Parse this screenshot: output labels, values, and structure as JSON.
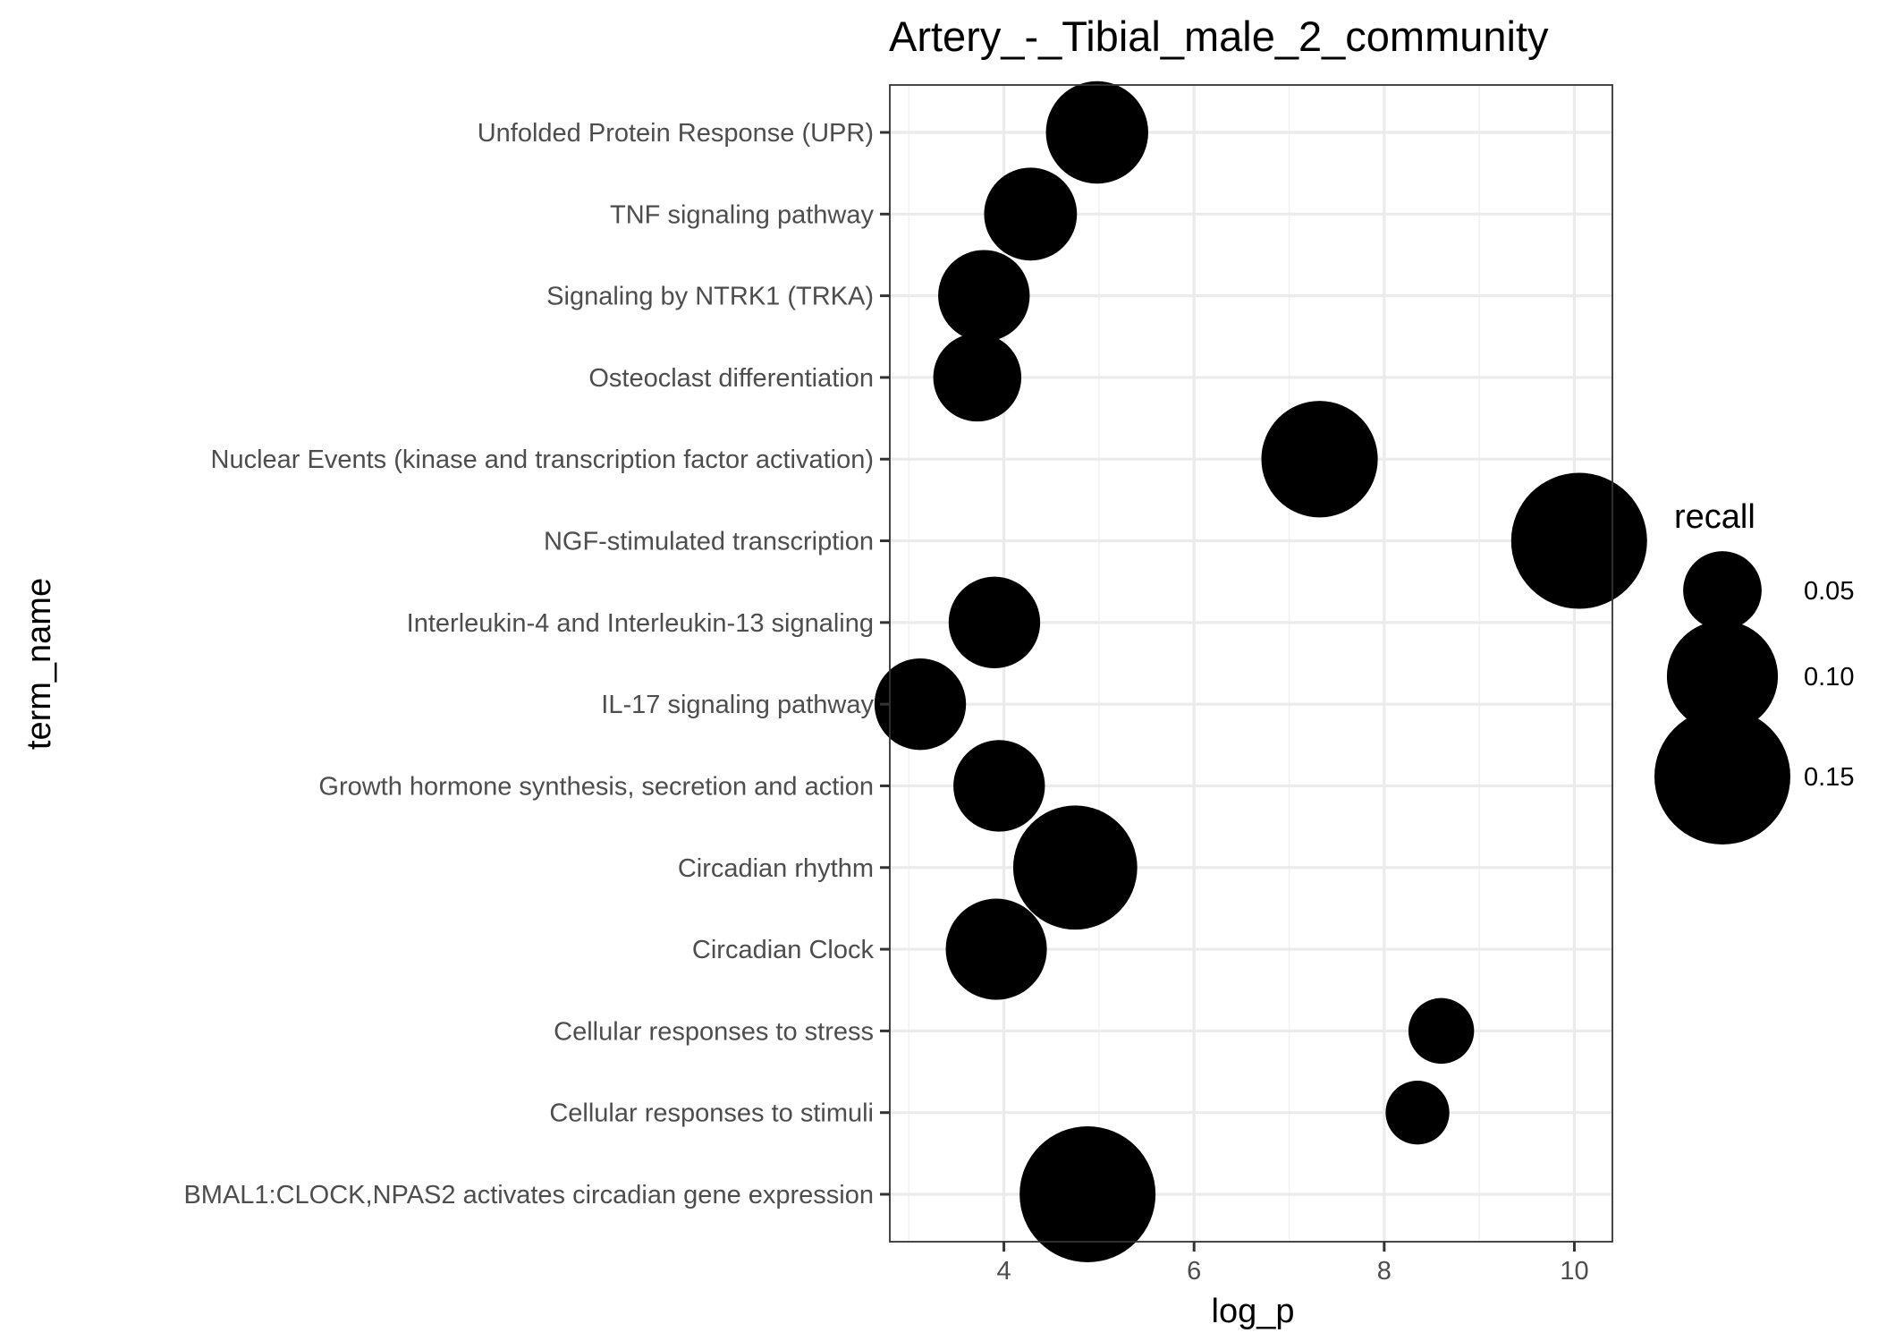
{
  "chart_data": {
    "type": "scatter",
    "title": "Artery_-_Tibial_male_2_community",
    "xlabel": "log_p",
    "ylabel": "term_name",
    "xlim": [
      2.8,
      10.4
    ],
    "xticks": [
      4,
      6,
      8,
      10
    ],
    "categories": [
      "Unfolded Protein Response (UPR)",
      "TNF signaling pathway",
      "Signaling by NTRK1 (TRKA)",
      "Osteoclast differentiation",
      "Nuclear Events (kinase and transcription factor activation)",
      "NGF-stimulated transcription",
      "Interleukin-4 and Interleukin-13 signaling",
      "IL-17 signaling pathway",
      "Growth hormone synthesis, secretion and action",
      "Circadian rhythm",
      "Circadian Clock",
      "Cellular responses to stress",
      "Cellular responses to stimuli",
      "BMAL1:CLOCK,NPAS2 activates circadian gene expression"
    ],
    "points": [
      {
        "term": "Unfolded Protein Response (UPR)",
        "log_p": 4.98,
        "recall": 0.085
      },
      {
        "term": "TNF signaling pathway",
        "log_p": 4.28,
        "recall": 0.07
      },
      {
        "term": "Signaling by NTRK1 (TRKA)",
        "log_p": 3.79,
        "recall": 0.068
      },
      {
        "term": "Osteoclast differentiation",
        "log_p": 3.72,
        "recall": 0.063
      },
      {
        "term": "Nuclear Events (kinase and transcription factor activation)",
        "log_p": 7.32,
        "recall": 0.11
      },
      {
        "term": "NGF-stimulated transcription",
        "log_p": 10.05,
        "recall": 0.15
      },
      {
        "term": "Interleukin-4 and Interleukin-13 signaling",
        "log_p": 3.9,
        "recall": 0.068
      },
      {
        "term": "IL-17 signaling pathway",
        "log_p": 3.12,
        "recall": 0.068
      },
      {
        "term": "Growth hormone synthesis, secretion and action",
        "log_p": 3.95,
        "recall": 0.068
      },
      {
        "term": "Circadian rhythm",
        "log_p": 4.75,
        "recall": 0.125
      },
      {
        "term": "Circadian Clock",
        "log_p": 3.92,
        "recall": 0.083
      },
      {
        "term": "Cellular responses to stress",
        "log_p": 8.6,
        "recall": 0.035
      },
      {
        "term": "Cellular responses to stimuli",
        "log_p": 8.35,
        "recall": 0.033
      },
      {
        "term": "BMAL1:CLOCK,NPAS2 activates circadian gene expression",
        "log_p": 4.88,
        "recall": 0.15
      }
    ],
    "legend": {
      "title": "recall",
      "position": "right",
      "entries": [
        {
          "label": "0.05",
          "value": 0.05
        },
        {
          "label": "0.10",
          "value": 0.1
        },
        {
          "label": "0.15",
          "value": 0.15
        }
      ]
    },
    "grid": true,
    "theme": "bw"
  }
}
